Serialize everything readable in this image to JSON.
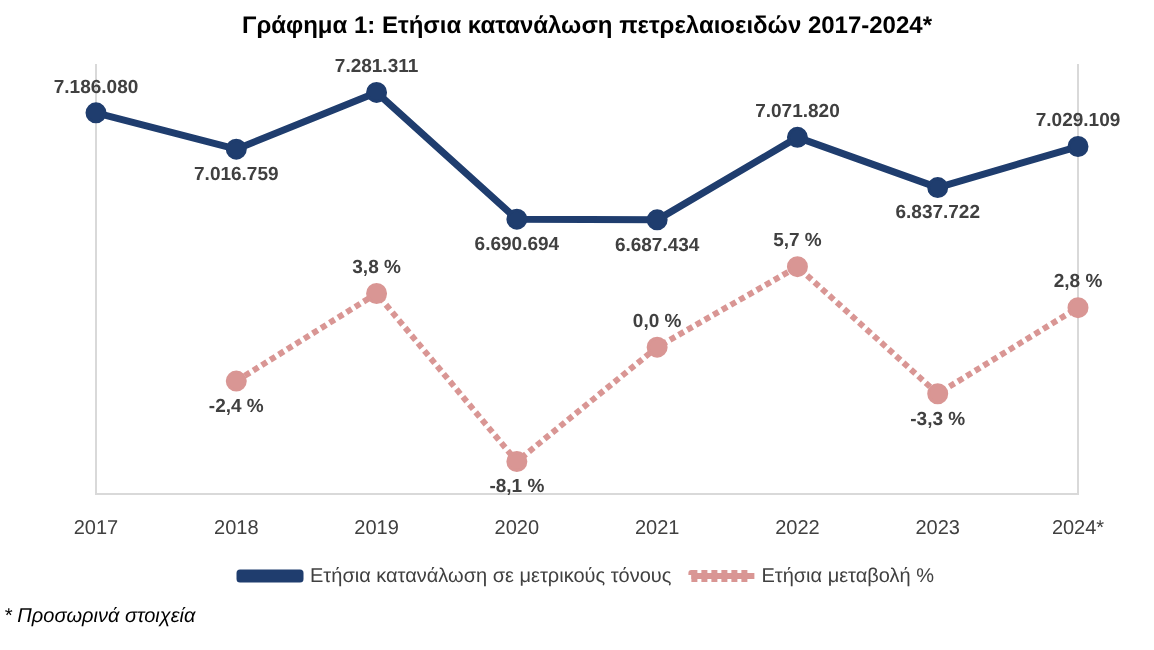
{
  "chart_data": {
    "type": "line",
    "title": "Γράφημα 1: Ετήσια κατανάλωση πετρελαιοειδών 2017-2024*",
    "categories": [
      "2017",
      "2018",
      "2019",
      "2020",
      "2021",
      "2022",
      "2023",
      "2024*"
    ],
    "series": [
      {
        "name": "Ετήσια κατανάλωση σε μετρικούς τόνους",
        "color": "#1f3d6e",
        "marker": "circle",
        "line_style": "solid",
        "values": [
          7186080,
          7016759,
          7281311,
          6690694,
          6687434,
          7071820,
          6837722,
          7029109
        ],
        "value_labels": [
          "7.186.080",
          "7.016.759",
          "7.281.311",
          "6.690.694",
          "6.687.434",
          "7.071.820",
          "6.837.722",
          "7.029.109"
        ]
      },
      {
        "name": "Ετήσια μεταβολή %",
        "color": "#d99694",
        "marker": "circle",
        "line_style": "dotted",
        "axis": "y2",
        "values": [
          null,
          -2.4,
          3.8,
          -8.1,
          0.0,
          5.7,
          -3.3,
          2.8
        ],
        "value_labels": [
          null,
          "-2,4 %",
          "3,8 %",
          "-8,1 %",
          "0,0 %",
          "5,7 %",
          "-3,3 %",
          "2,8 %"
        ]
      }
    ],
    "ylim": [
      5410000,
      7410000
    ],
    "y2lim": [
      -10.4,
      20
    ],
    "tick_labels": "x",
    "grid": false,
    "legend": "bottom",
    "annotations": [
      "* Προσωρινά στοιχεία"
    ]
  }
}
